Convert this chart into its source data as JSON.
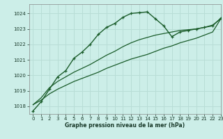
{
  "title": "Graphe pression niveau de la mer (hPa)",
  "bg_color": "#cceee8",
  "grid_color": "#b8ddd6",
  "line_color": "#1a5c2a",
  "xlim": [
    -0.5,
    23
  ],
  "ylim": [
    1017.5,
    1024.6
  ],
  "yticks": [
    1018,
    1019,
    1020,
    1021,
    1022,
    1023,
    1024
  ],
  "xticks": [
    0,
    1,
    2,
    3,
    4,
    5,
    6,
    7,
    8,
    9,
    10,
    11,
    12,
    13,
    14,
    15,
    16,
    17,
    18,
    19,
    20,
    21,
    22,
    23
  ],
  "series1": [
    1017.7,
    1018.3,
    1019.1,
    1019.9,
    1020.3,
    1021.1,
    1021.5,
    1022.0,
    1022.65,
    1023.1,
    1023.35,
    1023.75,
    1024.0,
    1024.05,
    1024.1,
    1023.65,
    1023.2,
    1022.5,
    1022.8,
    1022.9,
    1023.0,
    1023.1,
    1023.2,
    1023.7
  ],
  "series2": [
    1018.1,
    1018.55,
    1019.2,
    1019.6,
    1019.9,
    1020.2,
    1020.45,
    1020.7,
    1021.0,
    1021.3,
    1021.55,
    1021.85,
    1022.1,
    1022.3,
    1022.45,
    1022.6,
    1022.7,
    1022.8,
    1022.9,
    1022.95,
    1023.0,
    1023.1,
    1023.25,
    1023.65
  ],
  "series3": [
    1018.1,
    1018.4,
    1018.8,
    1019.1,
    1019.35,
    1019.6,
    1019.8,
    1020.0,
    1020.2,
    1020.45,
    1020.65,
    1020.85,
    1021.05,
    1021.2,
    1021.35,
    1021.55,
    1021.75,
    1021.9,
    1022.1,
    1022.25,
    1022.4,
    1022.6,
    1022.8,
    1023.65
  ]
}
